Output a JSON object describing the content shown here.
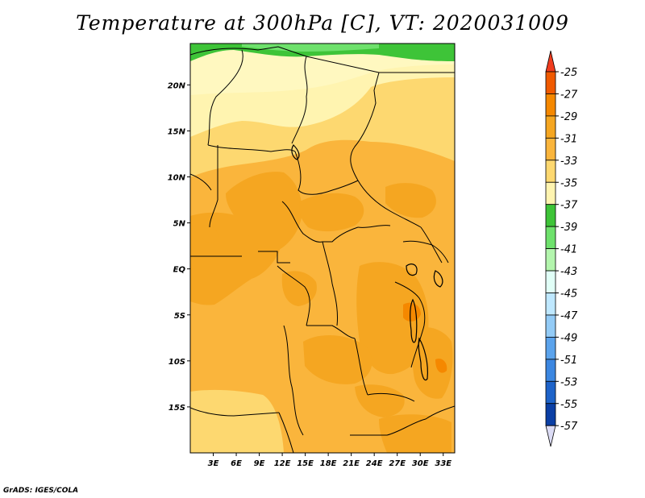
{
  "title": "Temperature at 300hPa [C], VT: 2020031009",
  "credit": "GrADS: IGES/COLA",
  "map": {
    "lon_range": [
      0,
      34.5
    ],
    "lat_range": [
      -20,
      24.5
    ],
    "lon_ticks": [
      "3E",
      "6E",
      "9E",
      "12E",
      "15E",
      "18E",
      "21E",
      "24E",
      "27E",
      "30E",
      "33E"
    ],
    "lat_ticks": [
      "20N",
      "15N",
      "10N",
      "5N",
      "EQ",
      "5S",
      "10S",
      "15S"
    ]
  },
  "colorbar": {
    "labels": [
      "-25",
      "-27",
      "-29",
      "-31",
      "-33",
      "-35",
      "-37",
      "-39",
      "-41",
      "-43",
      "-45",
      "-47",
      "-49",
      "-51",
      "-53",
      "-55",
      "-57"
    ],
    "colors": [
      "#f05a00",
      "#f58800",
      "#f5a621",
      "#fab53c",
      "#fdd870",
      "#fff4b0",
      "#3ec438",
      "#6ee16c",
      "#b3f5ad",
      "#e1fff7",
      "#bfe8ff",
      "#93cbf6",
      "#5ba3ec",
      "#3c87e1",
      "#1e63c9",
      "#0b3fa5",
      "#0a0a75"
    ],
    "top_arrow_color": "#f03c1e",
    "bottom_arrow_color": "#dcdcf5"
  }
}
